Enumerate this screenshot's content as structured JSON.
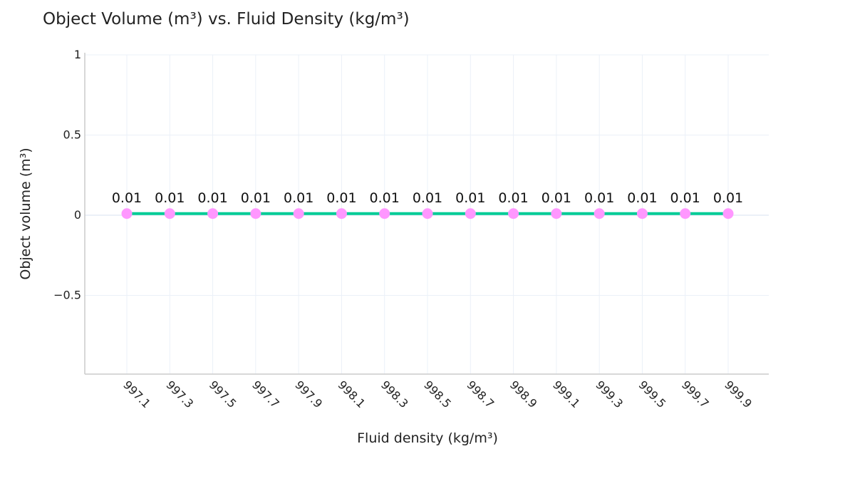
{
  "title": "Object Volume (m³) vs. Fluid Density (kg/m³)",
  "xaxis": {
    "title": "Fluid density (kg/m³)"
  },
  "yaxis": {
    "title": "Object volume (m³)",
    "ticks": [
      "1",
      "0.5",
      "0",
      "−0.5"
    ]
  },
  "colors": {
    "line": "#00cc96",
    "marker": "#ff97ff",
    "grid": "#ebf0f8",
    "axis": "#cccccc"
  },
  "chart_data": {
    "type": "line",
    "title": "Object Volume (m³) vs. Fluid Density (kg/m³)",
    "xlabel": "Fluid density (kg/m³)",
    "ylabel": "Object volume (m³)",
    "x": [
      997.1,
      997.3,
      997.5,
      997.7,
      997.9,
      998.1,
      998.3,
      998.5,
      998.7,
      998.9,
      999.1,
      999.3,
      999.5,
      999.7,
      999.9
    ],
    "x_labels": [
      "997.1",
      "997.3",
      "997.5",
      "997.7",
      "997.9",
      "998.1",
      "998.3",
      "998.5",
      "998.7",
      "998.9",
      "999.1",
      "999.3",
      "999.5",
      "999.7",
      "999.9"
    ],
    "values": [
      0.01,
      0.01,
      0.01,
      0.01,
      0.01,
      0.01,
      0.01,
      0.01,
      0.01,
      0.01,
      0.01,
      0.01,
      0.01,
      0.01,
      0.01
    ],
    "data_labels": [
      "0.01",
      "0.01",
      "0.01",
      "0.01",
      "0.01",
      "0.01",
      "0.01",
      "0.01",
      "0.01",
      "0.01",
      "0.01",
      "0.01",
      "0.01",
      "0.01",
      "0.01"
    ],
    "ylim": [
      -0.99,
      1
    ],
    "yticks": [
      1,
      0.5,
      0,
      -0.5
    ],
    "grid": true,
    "mode": "lines+markers+text"
  }
}
